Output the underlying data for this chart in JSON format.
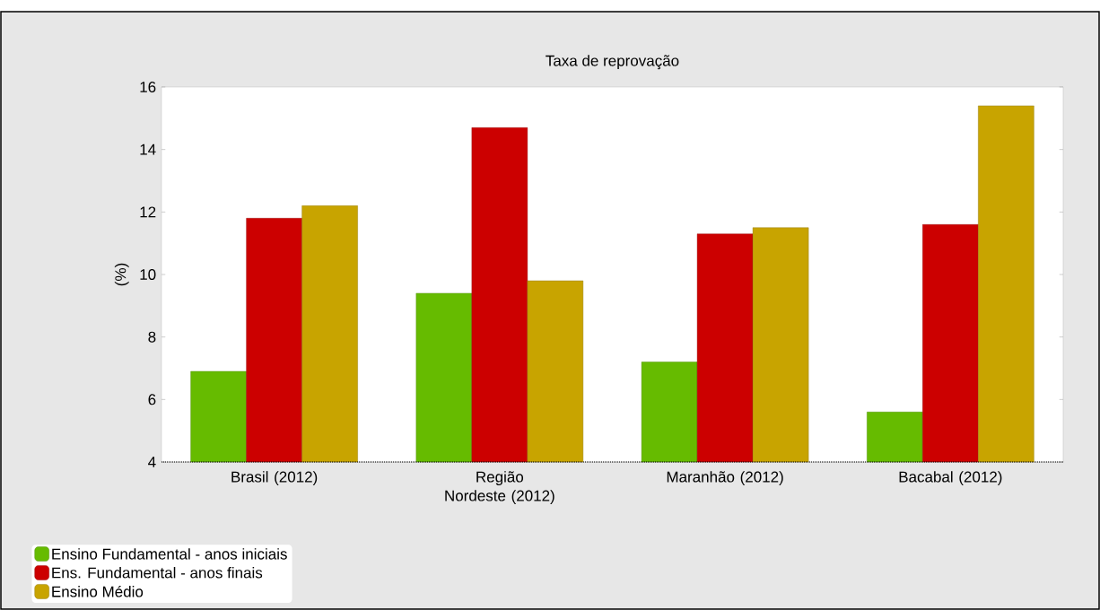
{
  "chart_data": {
    "type": "bar",
    "title": "Taxa de reprovação",
    "ylabel": "(%)",
    "categories": [
      "Brasil (2012)",
      "Região Nordeste (2012)",
      "Maranhão (2012)",
      "Bacabal (2012)"
    ],
    "series": [
      {
        "name": "Ensino Fundamental - anos iniciais",
        "color": "#66bb00",
        "values": [
          6.9,
          9.4,
          7.2,
          5.6
        ]
      },
      {
        "name": "Ens. Fundamental - anos finais",
        "color": "#cc0000",
        "values": [
          11.8,
          14.7,
          11.3,
          11.6
        ]
      },
      {
        "name": "Ensino Médio",
        "color": "#c8a400",
        "values": [
          12.2,
          9.8,
          11.5,
          15.4
        ]
      }
    ],
    "ylim": [
      4,
      16
    ],
    "yticks": [
      4,
      6,
      8,
      10,
      12,
      14,
      16
    ],
    "legend": "bottom left"
  }
}
